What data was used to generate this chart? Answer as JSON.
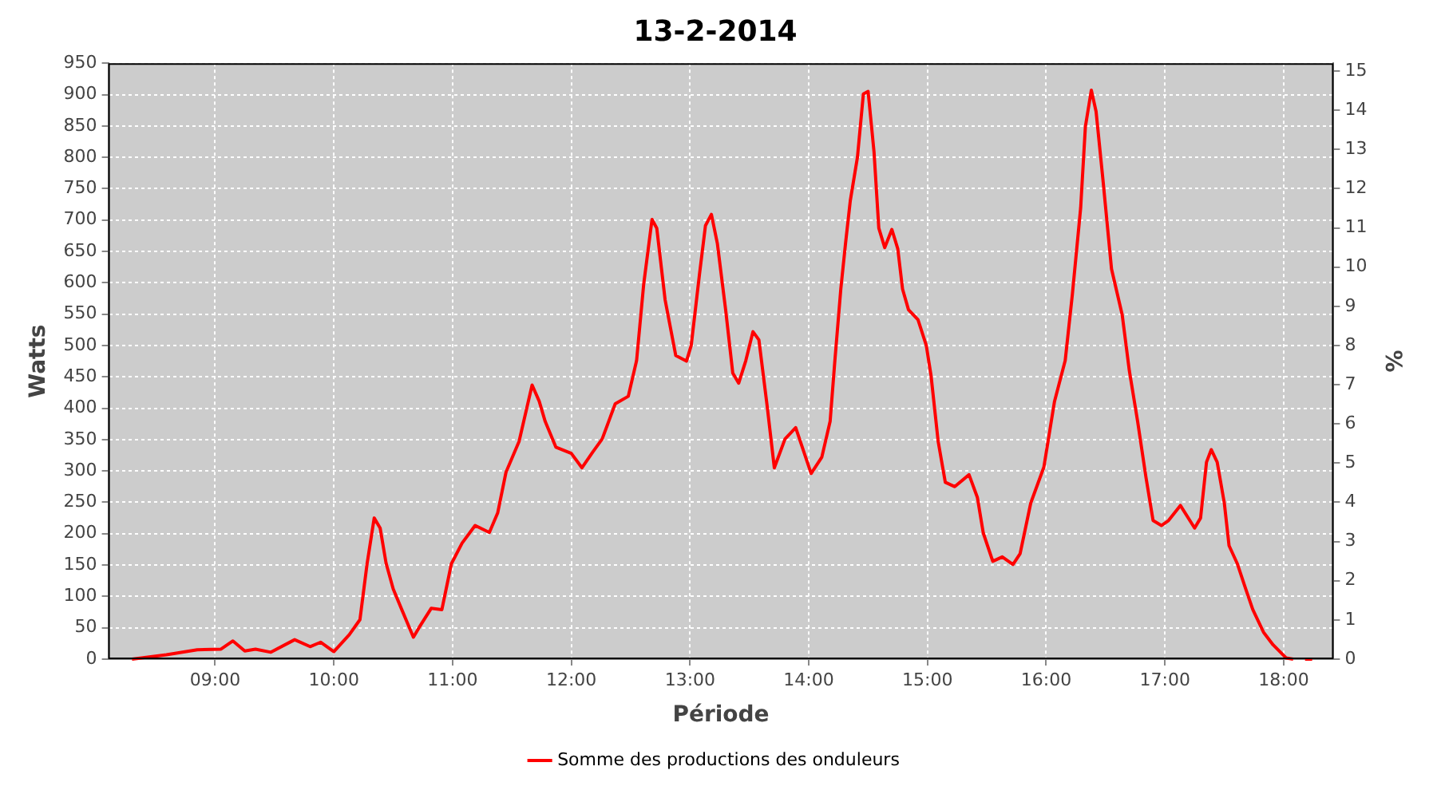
{
  "chart_data": {
    "type": "line",
    "title": "13-2-2014",
    "xlabel": "Période",
    "ylabel": "Watts",
    "y2label": "%",
    "x": [
      8.3,
      8.59,
      8.85,
      9.05,
      9.15,
      9.25,
      9.34,
      9.47,
      9.67,
      9.8,
      9.89,
      10.0,
      10.13,
      10.22,
      10.28,
      10.34,
      10.39,
      10.44,
      10.5,
      10.57,
      10.67,
      10.72,
      10.82,
      10.91,
      10.99,
      11.08,
      11.19,
      11.31,
      11.38,
      11.45,
      11.56,
      11.67,
      11.73,
      11.78,
      11.87,
      12.0,
      12.09,
      12.18,
      12.26,
      12.37,
      12.48,
      12.55,
      12.61,
      12.68,
      12.72,
      12.79,
      12.88,
      12.97,
      13.01,
      13.08,
      13.13,
      13.18,
      13.23,
      13.3,
      13.36,
      13.41,
      13.47,
      13.53,
      13.58,
      13.65,
      13.71,
      13.8,
      13.89,
      14.02,
      14.11,
      14.18,
      14.22,
      14.27,
      14.31,
      14.35,
      14.41,
      14.46,
      14.5,
      14.55,
      14.59,
      14.64,
      14.7,
      14.75,
      14.79,
      14.84,
      14.92,
      14.99,
      15.03,
      15.09,
      15.15,
      15.23,
      15.35,
      15.42,
      15.47,
      15.55,
      15.63,
      15.72,
      15.78,
      15.87,
      15.98,
      16.07,
      16.16,
      16.22,
      16.29,
      16.33,
      16.38,
      16.42,
      16.48,
      16.55,
      16.64,
      16.7,
      16.77,
      16.84,
      16.9,
      16.97,
      17.03,
      17.13,
      17.25,
      17.3,
      17.35,
      17.39,
      17.44,
      17.5,
      17.54,
      17.61,
      17.68,
      17.74,
      17.83,
      17.91,
      18.02,
      18.08,
      18.13,
      18.18,
      18.24
    ],
    "series": [
      {
        "name": "Somme des productions des onduleurs",
        "color": "#ff0000",
        "values": [
          0,
          7,
          15,
          16,
          29,
          13,
          16,
          11,
          31,
          20,
          27,
          12,
          39,
          63,
          152,
          225,
          209,
          153,
          112,
          80,
          35,
          51,
          81,
          79,
          152,
          185,
          213,
          202,
          233,
          298,
          347,
          437,
          411,
          379,
          338,
          328,
          305,
          330,
          351,
          407,
          419,
          476,
          598,
          701,
          687,
          573,
          484,
          475,
          500,
          614,
          691,
          709,
          663,
          557,
          456,
          440,
          476,
          522,
          509,
          403,
          305,
          351,
          369,
          296,
          322,
          379,
          476,
          590,
          663,
          731,
          800,
          901,
          905,
          808,
          687,
          656,
          685,
          654,
          590,
          557,
          541,
          500,
          452,
          347,
          282,
          275,
          294,
          258,
          201,
          156,
          163,
          151,
          168,
          249,
          306,
          411,
          476,
          581,
          719,
          849,
          907,
          873,
          760,
          622,
          549,
          460,
          379,
          290,
          221,
          213,
          221,
          245,
          209,
          225,
          314,
          334,
          314,
          249,
          181,
          152,
          112,
          79,
          43,
          23,
          2,
          0,
          null,
          0,
          0
        ]
      }
    ],
    "xlim": [
      8.1,
      18.42
    ],
    "xticks": [
      {
        "value": 9,
        "label": "09:00"
      },
      {
        "value": 10,
        "label": "10:00"
      },
      {
        "value": 11,
        "label": "11:00"
      },
      {
        "value": 12,
        "label": "12:00"
      },
      {
        "value": 13,
        "label": "13:00"
      },
      {
        "value": 14,
        "label": "14:00"
      },
      {
        "value": 15,
        "label": "15:00"
      },
      {
        "value": 16,
        "label": "16:00"
      },
      {
        "value": 17,
        "label": "17:00"
      },
      {
        "value": 18,
        "label": "18:00"
      }
    ],
    "ylim": [
      0,
      950
    ],
    "yticks": [
      0,
      50,
      100,
      150,
      200,
      250,
      300,
      350,
      400,
      450,
      500,
      550,
      600,
      650,
      700,
      750,
      800,
      850,
      900,
      950
    ],
    "y2lim": [
      0,
      15.2
    ],
    "y2ticks": [
      0,
      1,
      2,
      3,
      4,
      5,
      6,
      7,
      8,
      9,
      10,
      11,
      12,
      13,
      14,
      15
    ],
    "grid": true,
    "legend": "bottom",
    "marker": "none",
    "line_style": "solid"
  }
}
